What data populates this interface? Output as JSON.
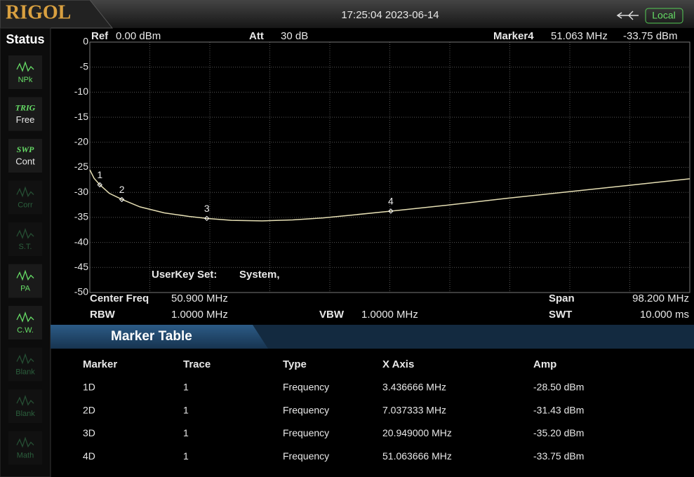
{
  "header": {
    "logo": "RIGOL",
    "datetime": "17:25:04 2023-06-14",
    "mode": "Local"
  },
  "sidebar": {
    "title": "Status",
    "items": [
      [
        "NPk"
      ],
      [
        "TRIG",
        "Free"
      ],
      [
        "SWP",
        "Cont"
      ],
      [
        "Corr"
      ],
      [
        "S.T."
      ],
      [
        "PA"
      ],
      [
        "C.W."
      ],
      [
        "Blank"
      ],
      [
        "Blank"
      ],
      [
        "Math"
      ]
    ]
  },
  "readout": {
    "ref_label": "Ref",
    "ref": "0.00 dBm",
    "att_label": "Att",
    "att": "30 dB",
    "marker_label": "Marker4",
    "marker_freq": "51.063 MHz",
    "marker_amp": "-33.75 dBm",
    "userkey_label": "UserKey Set:",
    "userkey": "System,",
    "center_label": "Center Freq",
    "center": "50.900 MHz",
    "span_label": "Span",
    "span": "98.200 MHz",
    "rbw_label": "RBW",
    "rbw": "1.0000 MHz",
    "vbw_label": "VBW",
    "vbw": "1.0000 MHz",
    "swt_label": "SWT",
    "swt": "10.000 ms"
  },
  "chart_data": {
    "type": "line",
    "xlim": [
      1.8,
      100
    ],
    "ylim": [
      -50,
      0
    ],
    "yticks": [
      0,
      -5,
      -10,
      -15,
      -20,
      -25,
      -30,
      -35,
      -40,
      -45,
      -50
    ],
    "grid": true,
    "x": [
      1.8,
      2.5,
      3.44,
      5,
      7.04,
      10,
      14,
      18,
      20.95,
      25,
      30,
      35,
      40,
      45,
      51.06,
      60,
      70,
      80,
      90,
      100
    ],
    "series": [
      {
        "color": "#e6dfb4",
        "values": [
          -25.5,
          -27.2,
          -28.5,
          -30.2,
          -31.4,
          -32.9,
          -34.1,
          -34.8,
          -35.2,
          -35.6,
          -35.7,
          -35.5,
          -35.1,
          -34.5,
          -33.75,
          -32.6,
          -31.2,
          -29.9,
          -28.6,
          -27.3
        ]
      }
    ],
    "markers": [
      {
        "label": "1",
        "x": 3.436666,
        "y": -28.5
      },
      {
        "label": "2",
        "x": 7.037333,
        "y": -31.43
      },
      {
        "label": "3",
        "x": 20.949,
        "y": -35.2
      },
      {
        "label": "4",
        "x": 51.063666,
        "y": -33.75
      }
    ]
  },
  "marker_table": {
    "title": "Marker Table",
    "columns": [
      "Marker",
      "Trace",
      "Type",
      "X Axis",
      "Amp"
    ],
    "rows": [
      [
        "1D",
        "1",
        "Frequency",
        "3.436666 MHz",
        "-28.50 dBm"
      ],
      [
        "2D",
        "1",
        "Frequency",
        "7.037333 MHz",
        "-31.43 dBm"
      ],
      [
        "3D",
        "1",
        "Frequency",
        "20.949000 MHz",
        "-35.20 dBm"
      ],
      [
        "4D",
        "1",
        "Frequency",
        "51.063666 MHz",
        "-33.75 dBm"
      ]
    ]
  }
}
